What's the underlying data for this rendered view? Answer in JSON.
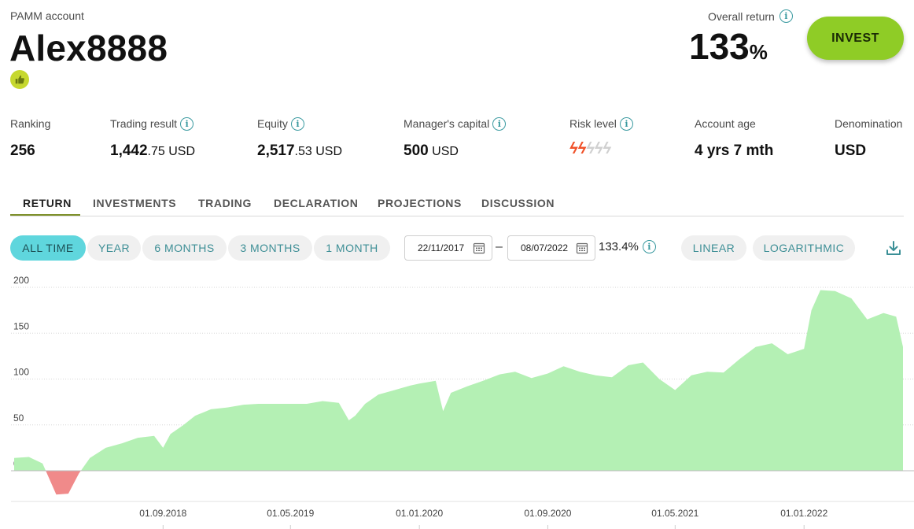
{
  "header": {
    "account_label": "PAMM account",
    "account_name": "Alex8888",
    "overall_return_label": "Overall return",
    "overall_return_value": "133",
    "overall_return_unit": "%",
    "invest_label": "INVEST"
  },
  "stats": {
    "ranking": {
      "label": "Ranking",
      "value": "256"
    },
    "trading_result": {
      "label": "Trading result",
      "int": "1,442",
      "dec": ".75",
      "cur": " USD"
    },
    "equity": {
      "label": "Equity",
      "int": "2,517",
      "dec": ".53",
      "cur": " USD"
    },
    "managers_capital": {
      "label": "Manager's capital",
      "int": "500",
      "cur": " USD"
    },
    "risk_level": {
      "label": "Risk level",
      "level": 2,
      "max": 5
    },
    "account_age": {
      "label": "Account age",
      "value": "4 yrs 7 mth"
    },
    "denomination": {
      "label": "Denomination",
      "value": "USD"
    }
  },
  "tabs": [
    "RETURN",
    "INVESTMENTS",
    "TRADING",
    "DECLARATION",
    "PROJECTIONS",
    "DISCUSSION"
  ],
  "ranges": [
    "ALL TIME",
    "YEAR",
    "6 MONTHS",
    "3 MONTHS",
    "1 MONTH"
  ],
  "date_from": "22/11/2017",
  "date_to": "08/07/2022",
  "date_separator": "–",
  "period_return": "133.4%",
  "scales": [
    "LINEAR",
    "LOGARITHMIC"
  ],
  "colors": {
    "accent": "#5fd6dd",
    "invest": "#8fcc26",
    "positive_fill": "#b4f0b4",
    "negative_fill": "#f08a8a",
    "risk_active": "#f0522a",
    "risk_inactive": "#d0d0d0"
  },
  "chart_data": {
    "type": "area",
    "yticks": [
      "200",
      "150",
      "100",
      "50",
      "0"
    ],
    "ylim": [
      -30,
      200
    ],
    "xticks": [
      "01.09.2018",
      "01.05.2019",
      "01.01.2020",
      "01.09.2020",
      "01.05.2021",
      "01.01.2022"
    ],
    "xtick_dates": [
      "2018-09-01",
      "2019-05-01",
      "2020-01-01",
      "2020-09-01",
      "2021-05-01",
      "2022-01-01"
    ],
    "grid": true,
    "series": [
      {
        "x": [
          "2017-11-22",
          "2017-12-20",
          "2018-01-15",
          "2018-02-10",
          "2018-03-05",
          "2018-03-25",
          "2018-04-15",
          "2018-05-15",
          "2018-06-15",
          "2018-07-15",
          "2018-08-15",
          "2018-09-01",
          "2018-09-15",
          "2018-10-10",
          "2018-11-01",
          "2018-12-01",
          "2019-01-01",
          "2019-02-01",
          "2019-03-01",
          "2019-04-01",
          "2019-05-01",
          "2019-06-01",
          "2019-07-01",
          "2019-08-01",
          "2019-08-20",
          "2019-09-01",
          "2019-09-20",
          "2019-10-15",
          "2019-11-15",
          "2019-12-15",
          "2020-01-01",
          "2020-02-01",
          "2020-02-15",
          "2020-03-01",
          "2020-04-01",
          "2020-05-01",
          "2020-06-01",
          "2020-07-01",
          "2020-08-01",
          "2020-09-01",
          "2020-10-01",
          "2020-11-01",
          "2020-12-01",
          "2021-01-01",
          "2021-02-01",
          "2021-03-01",
          "2021-04-01",
          "2021-05-01",
          "2021-06-01",
          "2021-07-01",
          "2021-08-01",
          "2021-09-01",
          "2021-10-01",
          "2021-11-01",
          "2021-12-01",
          "2022-01-01",
          "2022-01-15",
          "2022-02-01",
          "2022-03-01",
          "2022-04-01",
          "2022-05-01",
          "2022-06-01",
          "2022-06-25",
          "2022-07-08"
        ],
        "y": [
          14,
          15,
          8,
          -26,
          -25,
          -3,
          14,
          25,
          30,
          36,
          38,
          25,
          40,
          50,
          60,
          67,
          69,
          72,
          73,
          73,
          73,
          73,
          76,
          74,
          55,
          60,
          73,
          83,
          88,
          93,
          95,
          98,
          65,
          85,
          92,
          98,
          105,
          108,
          101,
          106,
          114,
          108,
          104,
          102,
          115,
          118,
          100,
          88,
          104,
          108,
          107,
          122,
          135,
          139,
          127,
          133,
          175,
          197,
          196,
          188,
          165,
          172,
          168,
          135
        ]
      }
    ]
  }
}
